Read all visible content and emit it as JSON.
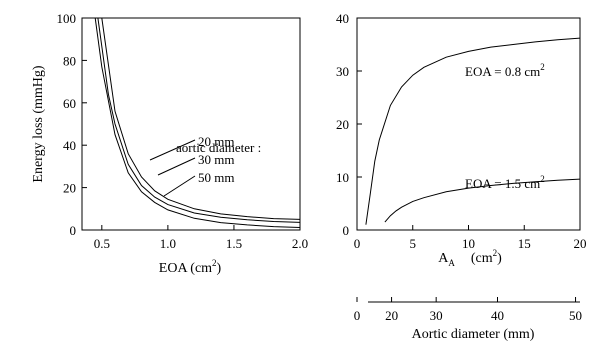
{
  "chart_data": [
    {
      "type": "line",
      "xlabel": "EOA (cm",
      "xlabel_sup": "2",
      "xlabel_tail": ")",
      "ylabel": "Energy loss  (mmHg)",
      "xlim": [
        0.35,
        2.0
      ],
      "ylim": [
        0,
        100
      ],
      "xticks": [
        "0.5",
        "1.0",
        "1.5",
        "2.0"
      ],
      "yticks": [
        "0",
        "20",
        "40",
        "60",
        "80",
        "100"
      ],
      "annotation_title": "aortic diameter :",
      "series": [
        {
          "name": "20 mm",
          "x": [
            0.5,
            0.6,
            0.7,
            0.8,
            0.9,
            1.0,
            1.2,
            1.4,
            1.6,
            1.8,
            2.0
          ],
          "y": [
            100,
            56,
            36,
            25,
            18.5,
            14.5,
            10,
            7.6,
            6.3,
            5.4,
            5
          ]
        },
        {
          "name": "30 mm",
          "x": [
            0.47,
            0.55,
            0.6,
            0.7,
            0.8,
            0.9,
            1.0,
            1.2,
            1.4,
            1.6,
            1.8,
            2.0
          ],
          "y": [
            100,
            64,
            50,
            31,
            21,
            15.5,
            12,
            8,
            6,
            4.8,
            4,
            3.6
          ]
        },
        {
          "name": "50 mm",
          "x": [
            0.45,
            0.5,
            0.6,
            0.7,
            0.8,
            0.9,
            1.0,
            1.2,
            1.4,
            1.6,
            1.8,
            2.0
          ],
          "y": [
            100,
            77,
            45,
            27,
            18,
            13,
            9.5,
            5.5,
            3.5,
            2.4,
            1.6,
            1.2
          ]
        }
      ]
    },
    {
      "type": "line",
      "xlabel": "A",
      "xlabel_sub": "A",
      "xlabel_tail": "(cm",
      "xlabel_sup": "2",
      "xlabel_end": ")",
      "xlim": [
        0,
        20
      ],
      "ylim": [
        0,
        40
      ],
      "xticks": [
        "0",
        "5",
        "10",
        "15",
        "20"
      ],
      "yticks": [
        "0",
        "10",
        "20",
        "30",
        "40"
      ],
      "series": [
        {
          "name": "EOA = 0.8 cm",
          "name_sup": "2",
          "x": [
            0.8,
            1.2,
            1.6,
            2,
            3,
            4,
            5,
            6,
            8,
            10,
            12,
            14,
            16,
            18,
            20
          ],
          "y": [
            1,
            7,
            13,
            17,
            23.5,
            27,
            29.2,
            30.7,
            32.6,
            33.7,
            34.5,
            35,
            35.5,
            35.9,
            36.2
          ]
        },
        {
          "name": "EOA = 1.5 cm",
          "name_sup": "2",
          "x": [
            2.5,
            3,
            3.5,
            4,
            5,
            6,
            8,
            10,
            12,
            14,
            16,
            18,
            20
          ],
          "y": [
            1.5,
            2.7,
            3.6,
            4.3,
            5.4,
            6.1,
            7.2,
            7.9,
            8.4,
            8.8,
            9.1,
            9.4,
            9.6
          ]
        }
      ]
    },
    {
      "type": "axis",
      "xlabel": "Aortic diameter (mm)",
      "ticks": [
        {
          "label": "0",
          "A": 0
        },
        {
          "label": "20",
          "A": 3.1
        },
        {
          "label": "30",
          "A": 7.1
        },
        {
          "label": "40",
          "A": 12.6
        },
        {
          "label": "50",
          "A": 19.6
        }
      ]
    }
  ]
}
